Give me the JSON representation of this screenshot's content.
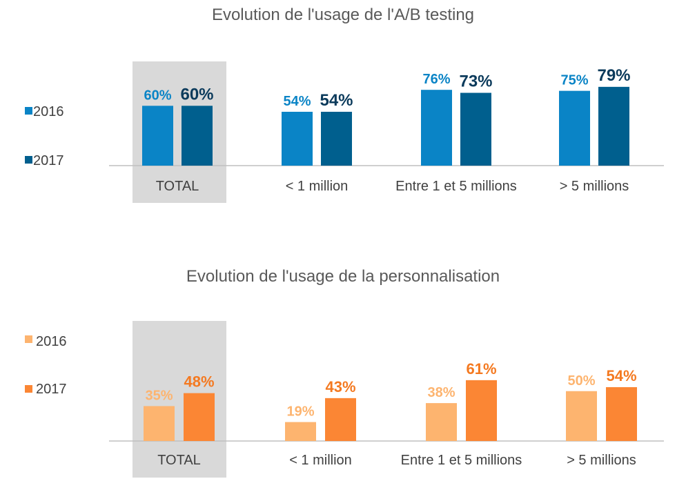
{
  "chart_data": [
    {
      "type": "bar",
      "title": "Evolution de l'usage de l'A/B testing",
      "categories": [
        "TOTAL",
        "< 1 million",
        "Entre 1 et 5 millions",
        "> 5 millions"
      ],
      "highlighted_category": "TOTAL",
      "ylim": [
        0,
        100
      ],
      "grid": false,
      "legend_position": "left",
      "series": [
        {
          "name": "2016",
          "values": [
            60,
            54,
            76,
            75
          ],
          "color": "#0A84C6",
          "labels": [
            "60%",
            "54%",
            "76%",
            "75%"
          ]
        },
        {
          "name": "2017",
          "values": [
            60,
            54,
            73,
            79
          ],
          "color": "#005F8E",
          "labels": [
            "60%",
            "54%",
            "73%",
            "79%"
          ]
        }
      ],
      "label_colors": [
        "#0A84C6",
        "#0B3A5B"
      ],
      "highlight_color": "#D9D9D9"
    },
    {
      "type": "bar",
      "title": "Evolution de l'usage de la personnalisation",
      "categories": [
        "TOTAL",
        "< 1 million",
        "Entre 1 et 5 millions",
        "> 5 millions"
      ],
      "highlighted_category": "TOTAL",
      "ylim": [
        0,
        100
      ],
      "grid": false,
      "legend_position": "left",
      "series": [
        {
          "name": "2016",
          "values": [
            35,
            19,
            38,
            50
          ],
          "color": "#FDB46F",
          "labels": [
            "35%",
            "19%",
            "38%",
            "50%"
          ]
        },
        {
          "name": "2017",
          "values": [
            48,
            43,
            61,
            54
          ],
          "color": "#FB8634",
          "labels": [
            "48%",
            "43%",
            "61%",
            "54%"
          ]
        }
      ],
      "label_colors": [
        "#FDB46F",
        "#F47920"
      ],
      "highlight_color": "#D9D9D9"
    }
  ]
}
